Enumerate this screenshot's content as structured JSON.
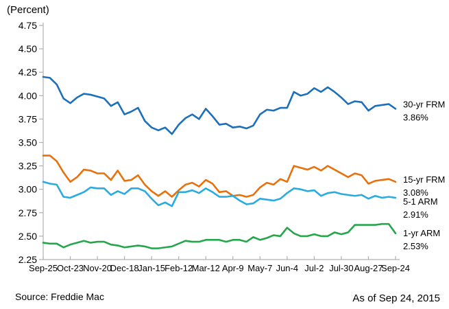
{
  "title": "(Percent)",
  "source": "Source: Freddie Mac",
  "as_of": "As of Sep 24, 2015",
  "colors": {
    "frm30": "#1c6fba",
    "frm15": "#e8710c",
    "arm51": "#29abe2",
    "arm1": "#26a64a",
    "axis": "#b0b0b0",
    "text": "#000000"
  },
  "chart_data": {
    "type": "line",
    "title": "(Percent)",
    "xlabel": "",
    "ylabel": "Percent",
    "ylim": [
      2.25,
      4.75
    ],
    "y_tick_step": 0.25,
    "y_tick_labels": [
      "4.75",
      "4.50",
      "4.25",
      "4.00",
      "3.75",
      "3.50",
      "3.25",
      "3.00",
      "2.75",
      "2.50",
      "2.25"
    ],
    "x_tick_labels": [
      "Sep-25",
      "Oct-23",
      "Nov-20",
      "Dec-18",
      "Jan-15",
      "Feb-12",
      "Mar-12",
      "Apr-9",
      "May-7",
      "Jun-4",
      "Jul-2",
      "Jul-30",
      "Aug-27",
      "Sep-24"
    ],
    "x_tick_weeks": [
      0,
      4,
      8,
      12,
      16,
      20,
      24,
      28,
      32,
      36,
      40,
      44,
      48,
      52
    ],
    "grid": false,
    "legend_position": "right-line-end-labels",
    "series": [
      {
        "name": "30-yr FRM",
        "end_label": "30-yr FRM",
        "end_value_label": "3.86%",
        "color_key": "frm30",
        "values": [
          4.2,
          4.19,
          4.12,
          3.97,
          3.92,
          3.98,
          4.02,
          4.01,
          3.99,
          3.97,
          3.89,
          3.93,
          3.8,
          3.83,
          3.87,
          3.73,
          3.66,
          3.63,
          3.66,
          3.59,
          3.69,
          3.76,
          3.8,
          3.75,
          3.86,
          3.78,
          3.69,
          3.7,
          3.66,
          3.67,
          3.65,
          3.68,
          3.8,
          3.85,
          3.84,
          3.87,
          3.87,
          4.04,
          4.0,
          4.02,
          4.08,
          4.04,
          4.09,
          4.04,
          3.98,
          3.91,
          3.94,
          3.93,
          3.84,
          3.89,
          3.9,
          3.91,
          3.86
        ]
      },
      {
        "name": "15-yr FRM",
        "end_label": "15-yr FRM",
        "end_value_label": "3.08%",
        "color_key": "frm15",
        "values": [
          3.36,
          3.36,
          3.3,
          3.18,
          3.08,
          3.13,
          3.21,
          3.2,
          3.17,
          3.17,
          3.1,
          3.2,
          3.09,
          3.1,
          3.15,
          3.05,
          2.98,
          2.93,
          2.98,
          2.92,
          2.99,
          3.05,
          3.07,
          3.03,
          3.1,
          3.06,
          2.97,
          2.98,
          2.93,
          2.94,
          2.92,
          2.94,
          3.02,
          3.07,
          3.05,
          3.11,
          3.08,
          3.25,
          3.23,
          3.21,
          3.24,
          3.2,
          3.25,
          3.21,
          3.17,
          3.13,
          3.17,
          3.15,
          3.06,
          3.09,
          3.1,
          3.11,
          3.08
        ]
      },
      {
        "name": "5-1 ARM",
        "end_label": "5-1 ARM",
        "end_value_label": "2.91%",
        "color_key": "arm51",
        "values": [
          3.08,
          3.06,
          3.05,
          2.92,
          2.91,
          2.94,
          2.97,
          3.02,
          3.01,
          3.01,
          2.94,
          2.98,
          2.95,
          3.01,
          3.01,
          2.98,
          2.9,
          2.83,
          2.86,
          2.82,
          2.97,
          2.97,
          2.99,
          2.96,
          3.01,
          2.97,
          2.92,
          2.92,
          2.93,
          2.88,
          2.84,
          2.85,
          2.9,
          2.89,
          2.88,
          2.9,
          2.96,
          3.01,
          3.0,
          2.98,
          2.99,
          2.93,
          2.96,
          2.97,
          2.95,
          2.94,
          2.93,
          2.94,
          2.9,
          2.93,
          2.91,
          2.92,
          2.91
        ]
      },
      {
        "name": "1-yr ARM",
        "end_label": "1-yr ARM",
        "end_value_label": "2.53%",
        "color_key": "arm1",
        "values": [
          2.43,
          2.42,
          2.42,
          2.38,
          2.41,
          2.43,
          2.45,
          2.43,
          2.44,
          2.44,
          2.41,
          2.4,
          2.38,
          2.39,
          2.4,
          2.39,
          2.37,
          2.37,
          2.38,
          2.39,
          2.42,
          2.45,
          2.44,
          2.44,
          2.46,
          2.46,
          2.46,
          2.44,
          2.46,
          2.46,
          2.44,
          2.49,
          2.46,
          2.48,
          2.51,
          2.5,
          2.59,
          2.53,
          2.5,
          2.5,
          2.52,
          2.5,
          2.5,
          2.54,
          2.52,
          2.54,
          2.62,
          2.62,
          2.62,
          2.62,
          2.63,
          2.63,
          2.53
        ]
      }
    ]
  }
}
